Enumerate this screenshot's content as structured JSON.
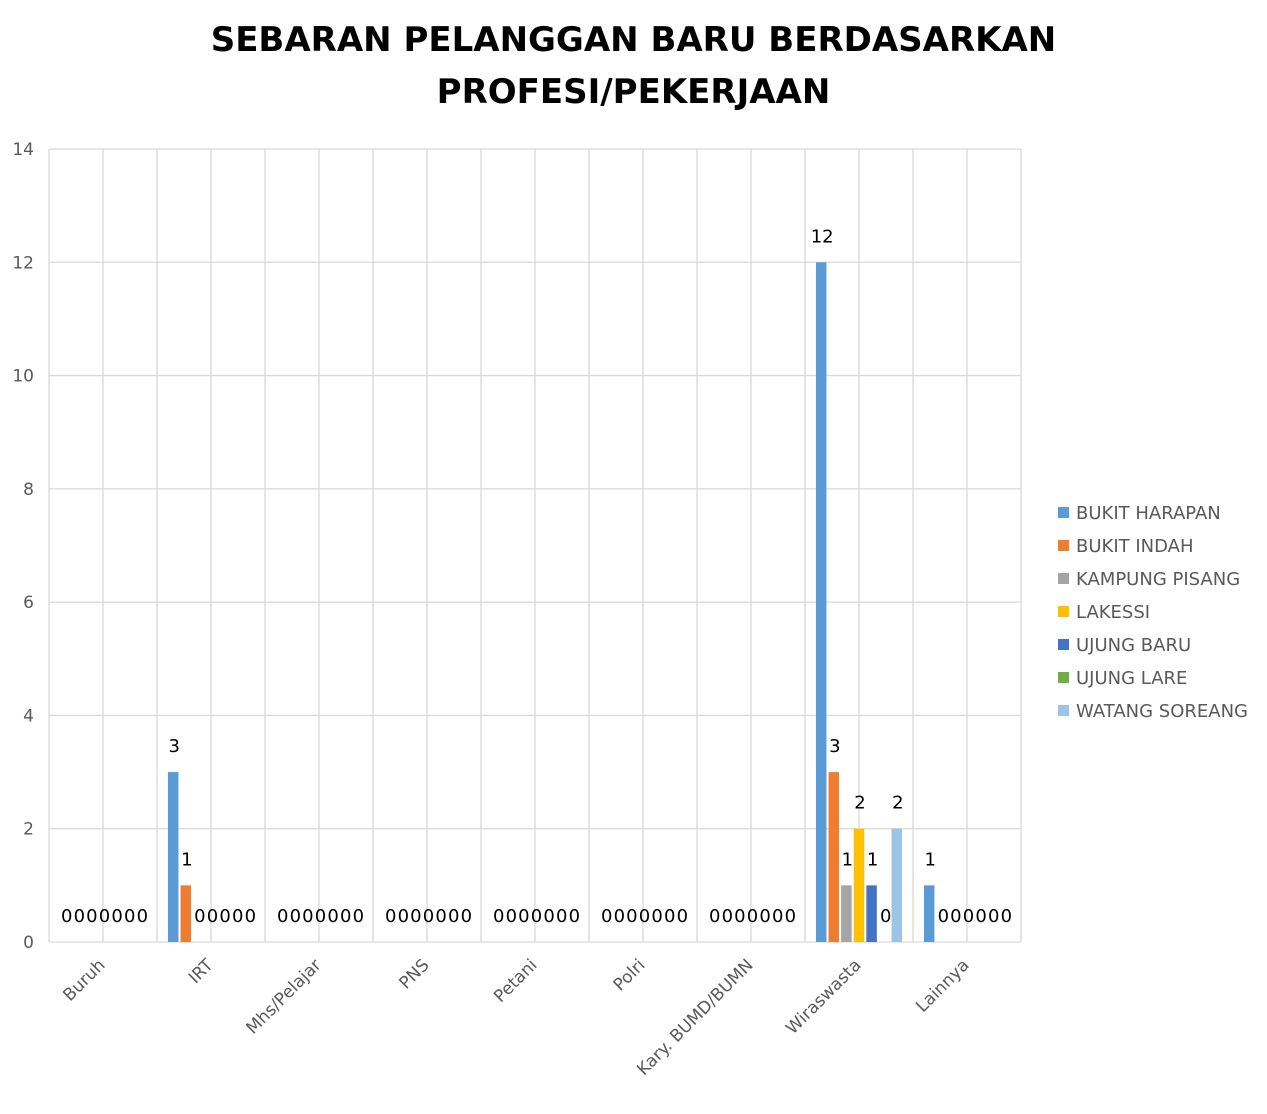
{
  "chart_data": {
    "type": "bar",
    "title_lines": [
      "SEBARAN PELANGGAN BARU BERDASARKAN",
      "PROFESI/PEKERJAAN"
    ],
    "xlabel": "",
    "ylabel": "",
    "ylim": [
      0,
      14
    ],
    "yticks": [
      0,
      2,
      4,
      6,
      8,
      10,
      12,
      14
    ],
    "grid": true,
    "legend_position": "right",
    "categories": [
      "Buruh",
      "IRT",
      "Mhs/Pelajar",
      "PNS",
      "Petani",
      "Polri",
      "Kary. BUMD/BUMN",
      "Wiraswasta",
      "Lainnya"
    ],
    "series": [
      {
        "name": "BUKIT HARAPAN",
        "color": "#5b9bd5",
        "values": [
          0,
          3,
          0,
          0,
          0,
          0,
          0,
          12,
          1
        ]
      },
      {
        "name": "BUKIT INDAH",
        "color": "#ed7d31",
        "values": [
          0,
          1,
          0,
          0,
          0,
          0,
          0,
          3,
          0
        ]
      },
      {
        "name": "KAMPUNG PISANG",
        "color": "#a5a5a5",
        "values": [
          0,
          0,
          0,
          0,
          0,
          0,
          0,
          1,
          0
        ]
      },
      {
        "name": "LAKESSI",
        "color": "#ffc000",
        "values": [
          0,
          0,
          0,
          0,
          0,
          0,
          0,
          2,
          0
        ]
      },
      {
        "name": "UJUNG BARU",
        "color": "#4472c4",
        "values": [
          0,
          0,
          0,
          0,
          0,
          0,
          0,
          1,
          0
        ]
      },
      {
        "name": "UJUNG LARE",
        "color": "#70ad47",
        "values": [
          0,
          0,
          0,
          0,
          0,
          0,
          0,
          0,
          0
        ]
      },
      {
        "name": "WATANG SOREANG",
        "color": "#9dc3e6",
        "values": [
          0,
          0,
          0,
          0,
          0,
          0,
          0,
          2,
          0
        ]
      }
    ],
    "gridline_color": "#d9d9d9"
  }
}
